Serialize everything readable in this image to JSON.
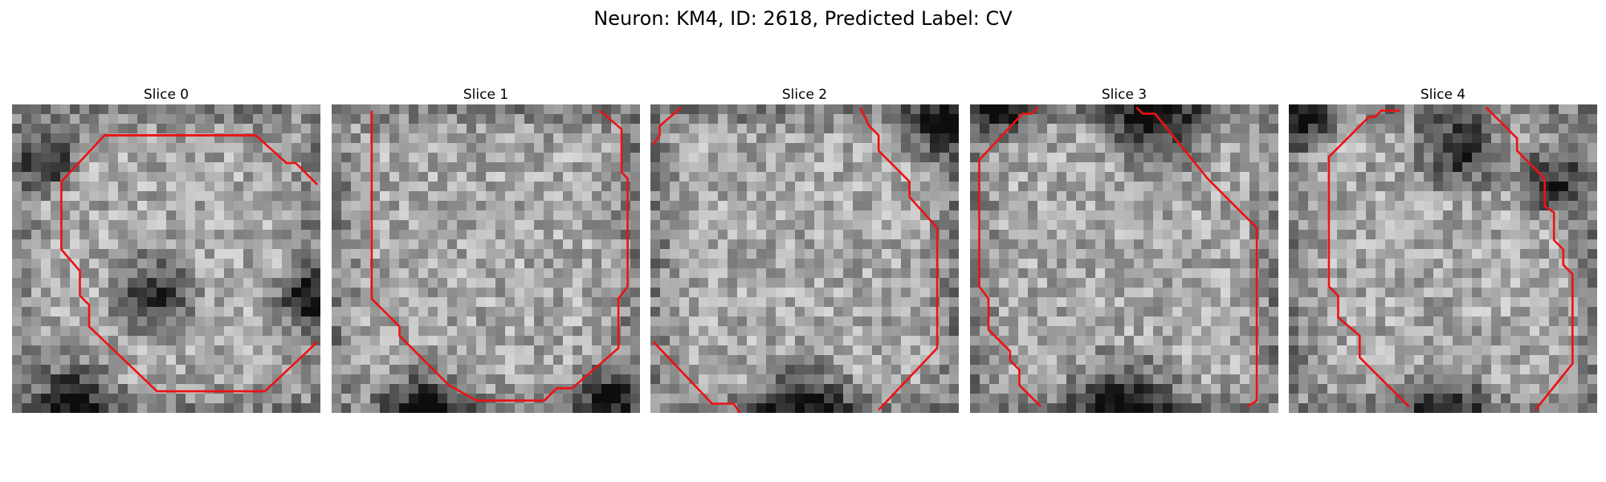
{
  "figure": {
    "title": "Neuron: KM4, ID: 2618, Predicted Label: CV"
  },
  "panels": [
    {
      "title": "Slice 0",
      "seed": 11,
      "dark_blobs": [
        [
          0.45,
          0.62,
          0.18
        ],
        [
          0.12,
          0.18,
          0.14
        ],
        [
          0.95,
          0.62,
          0.14
        ],
        [
          0.2,
          0.95,
          0.18
        ]
      ],
      "contour": [
        [
          0.3,
          0.1
        ],
        [
          0.79,
          0.1
        ],
        [
          0.89,
          0.19
        ],
        [
          0.92,
          0.19
        ],
        [
          0.99,
          0.26
        ],
        [
          0.16,
          0.25
        ],
        [
          0.16,
          0.47
        ],
        [
          0.22,
          0.54
        ],
        [
          0.22,
          0.62
        ],
        [
          0.25,
          0.65
        ],
        [
          0.25,
          0.72
        ],
        [
          0.47,
          0.93
        ],
        [
          0.82,
          0.93
        ],
        [
          0.99,
          0.77
        ]
      ],
      "contour_paths": [
        [
          0,
          1,
          2,
          3,
          4
        ],
        [
          1,
          0,
          5,
          6,
          7,
          8,
          9,
          10,
          11,
          12,
          13
        ]
      ]
    },
    {
      "title": "Slice 1",
      "seed": 23,
      "dark_blobs": [
        [
          0.3,
          1.0,
          0.2
        ],
        [
          0.9,
          0.95,
          0.15
        ]
      ],
      "contour": [
        [
          0.13,
          0.02
        ],
        [
          0.13,
          0.63
        ],
        [
          0.22,
          0.72
        ],
        [
          0.22,
          0.75
        ],
        [
          0.38,
          0.91
        ],
        [
          0.47,
          0.96
        ],
        [
          0.69,
          0.96
        ],
        [
          0.73,
          0.92
        ],
        [
          0.78,
          0.92
        ],
        [
          0.93,
          0.79
        ],
        [
          0.93,
          0.63
        ],
        [
          0.96,
          0.59
        ],
        [
          0.96,
          0.24
        ],
        [
          0.94,
          0.22
        ],
        [
          0.94,
          0.08
        ],
        [
          0.87,
          0.02
        ]
      ],
      "contour_paths": [
        [
          0,
          1,
          2,
          3,
          4,
          5,
          6,
          7,
          8,
          9,
          10,
          11,
          12,
          13,
          14,
          15
        ]
      ]
    },
    {
      "title": "Slice 2",
      "seed": 37,
      "dark_blobs": [
        [
          0.95,
          0.05,
          0.18
        ],
        [
          0.5,
          1.0,
          0.22
        ]
      ],
      "contour": [
        [
          0.01,
          0.13
        ],
        [
          0.03,
          0.1
        ],
        [
          0.03,
          0.07
        ],
        [
          0.1,
          0.01
        ],
        [
          0.01,
          0.77
        ],
        [
          0.2,
          0.97
        ],
        [
          0.27,
          0.97
        ],
        [
          0.29,
          1.0
        ],
        [
          0.68,
          0.01
        ],
        [
          0.71,
          0.07
        ],
        [
          0.74,
          0.1
        ],
        [
          0.74,
          0.15
        ],
        [
          0.84,
          0.25
        ],
        [
          0.84,
          0.3
        ],
        [
          0.93,
          0.4
        ],
        [
          0.93,
          0.79
        ],
        [
          0.74,
          0.99
        ]
      ],
      "contour_paths": [
        [
          0,
          1,
          2,
          3
        ],
        [
          4,
          5,
          6,
          7
        ],
        [
          8,
          9,
          10,
          11,
          12,
          13,
          14,
          15,
          16
        ]
      ]
    },
    {
      "title": "Slice 3",
      "seed": 53,
      "dark_blobs": [
        [
          0.6,
          0.05,
          0.22
        ],
        [
          0.1,
          0.02,
          0.12
        ],
        [
          0.5,
          1.0,
          0.25
        ]
      ],
      "contour": [
        [
          0.22,
          0.01
        ],
        [
          0.2,
          0.03
        ],
        [
          0.17,
          0.03
        ],
        [
          0.03,
          0.18
        ],
        [
          0.03,
          0.59
        ],
        [
          0.06,
          0.63
        ],
        [
          0.06,
          0.73
        ],
        [
          0.13,
          0.8
        ],
        [
          0.13,
          0.83
        ],
        [
          0.16,
          0.86
        ],
        [
          0.16,
          0.91
        ],
        [
          0.23,
          0.98
        ],
        [
          0.54,
          0.01
        ],
        [
          0.56,
          0.03
        ],
        [
          0.6,
          0.03
        ],
        [
          0.77,
          0.24
        ],
        [
          0.93,
          0.4
        ],
        [
          0.93,
          0.96
        ],
        [
          0.9,
          0.98
        ]
      ],
      "contour_paths": [
        [
          0,
          1,
          2,
          3,
          4,
          5,
          6,
          7,
          8,
          9,
          10,
          11
        ],
        [
          12,
          13,
          14,
          15,
          16,
          17,
          18
        ]
      ]
    },
    {
      "title": "Slice 4",
      "seed": 71,
      "dark_blobs": [
        [
          0.55,
          0.15,
          0.18
        ],
        [
          0.85,
          0.25,
          0.15
        ],
        [
          0.5,
          1.0,
          0.18
        ],
        [
          0.05,
          0.05,
          0.12
        ]
      ],
      "contour": [
        [
          0.36,
          0.02
        ],
        [
          0.3,
          0.02
        ],
        [
          0.28,
          0.04
        ],
        [
          0.26,
          0.04
        ],
        [
          0.13,
          0.17
        ],
        [
          0.13,
          0.59
        ],
        [
          0.16,
          0.62
        ],
        [
          0.16,
          0.69
        ],
        [
          0.23,
          0.75
        ],
        [
          0.23,
          0.82
        ],
        [
          0.39,
          0.98
        ],
        [
          0.64,
          0.01
        ],
        [
          0.74,
          0.11
        ],
        [
          0.74,
          0.15
        ],
        [
          0.83,
          0.24
        ],
        [
          0.83,
          0.33
        ],
        [
          0.86,
          0.35
        ],
        [
          0.86,
          0.44
        ],
        [
          0.89,
          0.47
        ],
        [
          0.89,
          0.52
        ],
        [
          0.92,
          0.55
        ],
        [
          0.92,
          0.84
        ],
        [
          0.8,
          0.99
        ]
      ],
      "contour_paths": [
        [
          0,
          1,
          2,
          3,
          4,
          5,
          6,
          7,
          8,
          9,
          10
        ],
        [
          11,
          12,
          13,
          14,
          15,
          16,
          17,
          18,
          19,
          20,
          21,
          22
        ]
      ]
    }
  ],
  "style": {
    "contour_color": "#ee1111"
  }
}
